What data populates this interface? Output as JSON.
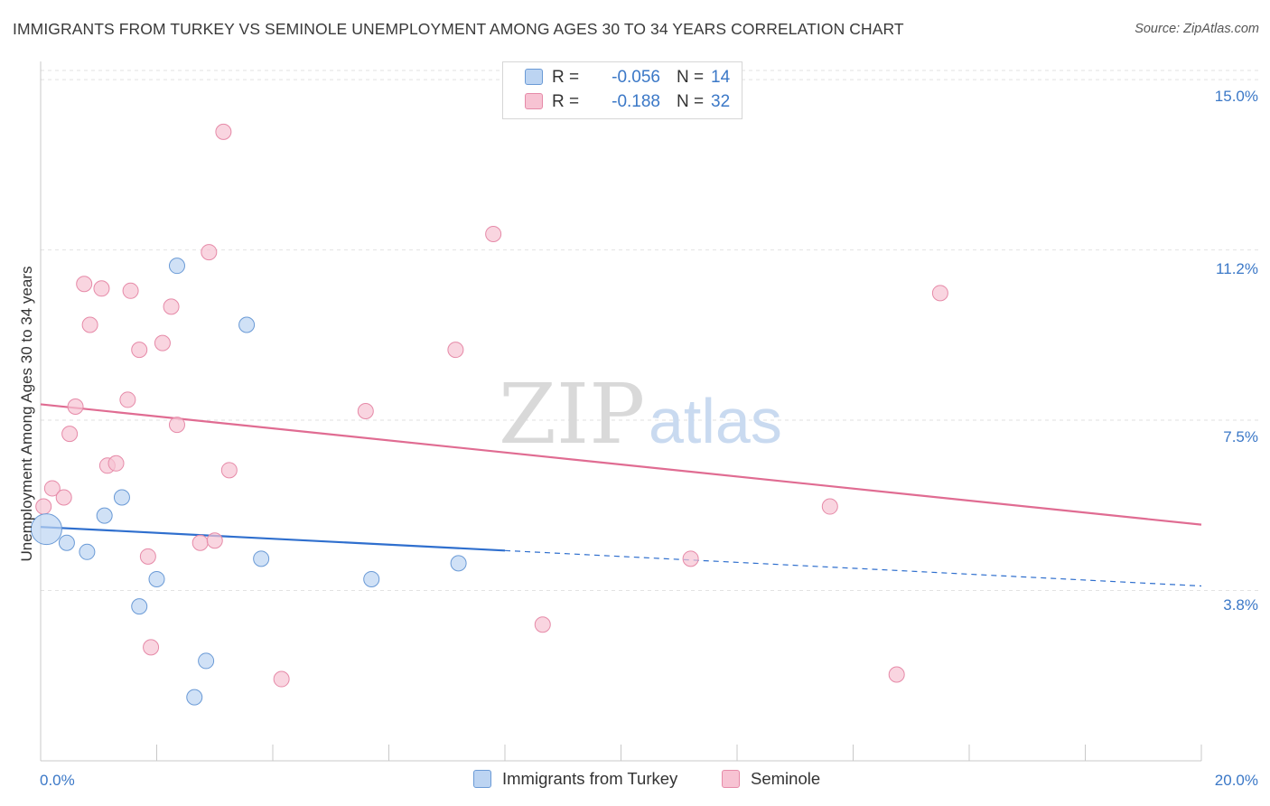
{
  "title": "IMMIGRANTS FROM TURKEY VS SEMINOLE UNEMPLOYMENT AMONG AGES 30 TO 34 YEARS CORRELATION CHART",
  "source": "Source: ZipAtlas.com",
  "watermark": {
    "zip": "ZIP",
    "atlas": "atlas"
  },
  "colors": {
    "blue_fill": "#bcd4f2",
    "blue_stroke": "#6a9ad6",
    "blue_line": "#2f6fce",
    "pink_fill": "#f7c3d3",
    "pink_stroke": "#e68aa8",
    "pink_line": "#e06c92",
    "accent_text": "#3b78c7",
    "grid": "#e2e2e2"
  },
  "legend": {
    "rows": [
      {
        "series": "blue",
        "r_label": "R =",
        "r_value": "-0.056",
        "n_label": "N =",
        "n_value": "14"
      },
      {
        "series": "pink",
        "r_label": "R =",
        "r_value": "-0.188",
        "n_label": "N =",
        "n_value": "32"
      }
    ]
  },
  "bottom_legend": [
    {
      "series": "blue",
      "label": "Immigrants from Turkey"
    },
    {
      "series": "pink",
      "label": "Seminole"
    }
  ],
  "chart_data": {
    "type": "scatter",
    "title": "IMMIGRANTS FROM TURKEY VS SEMINOLE UNEMPLOYMENT AMONG AGES 30 TO 34 YEARS CORRELATION CHART",
    "xlabel": "",
    "ylabel": "Unemployment Among Ages 30 to 34 years",
    "xlim": [
      0,
      20
    ],
    "ylim": [
      0,
      15.4
    ],
    "x_tick_labels": [
      {
        "value": 0,
        "label": "0.0%"
      },
      {
        "value": 20,
        "label": "20.0%"
      }
    ],
    "y_tick_labels": [
      {
        "value": 15.0,
        "label": "15.0%"
      },
      {
        "value": 11.2,
        "label": "11.2%"
      },
      {
        "value": 7.5,
        "label": "7.5%"
      },
      {
        "value": 3.8,
        "label": "3.8%"
      }
    ],
    "y_gridlines": [
      15.0,
      11.25,
      7.5,
      3.75
    ],
    "series": [
      {
        "name": "Immigrants from Turkey",
        "color": "blue",
        "points": [
          {
            "x": 0.1,
            "y": 5.1,
            "size": "large"
          },
          {
            "x": 0.45,
            "y": 4.8
          },
          {
            "x": 0.8,
            "y": 4.6
          },
          {
            "x": 1.1,
            "y": 5.4
          },
          {
            "x": 1.4,
            "y": 5.8
          },
          {
            "x": 1.7,
            "y": 3.4
          },
          {
            "x": 2.0,
            "y": 4.0
          },
          {
            "x": 2.35,
            "y": 10.9
          },
          {
            "x": 2.85,
            "y": 2.2
          },
          {
            "x": 2.65,
            "y": 1.4
          },
          {
            "x": 3.55,
            "y": 9.6
          },
          {
            "x": 3.8,
            "y": 4.45
          },
          {
            "x": 5.7,
            "y": 4.0
          },
          {
            "x": 7.2,
            "y": 4.35
          }
        ],
        "trend": {
          "x0": 0,
          "y0": 5.15,
          "x_solid_end": 8.0,
          "x1": 20,
          "y1": 3.85
        }
      },
      {
        "name": "Seminole",
        "color": "pink",
        "points": [
          {
            "x": 0.05,
            "y": 5.6
          },
          {
            "x": 0.2,
            "y": 6.0
          },
          {
            "x": 0.4,
            "y": 5.8
          },
          {
            "x": 0.5,
            "y": 7.2
          },
          {
            "x": 0.6,
            "y": 7.8
          },
          {
            "x": 0.75,
            "y": 10.5
          },
          {
            "x": 0.85,
            "y": 9.6
          },
          {
            "x": 1.05,
            "y": 10.4
          },
          {
            "x": 1.15,
            "y": 6.5
          },
          {
            "x": 1.3,
            "y": 6.55
          },
          {
            "x": 1.5,
            "y": 7.95
          },
          {
            "x": 1.55,
            "y": 10.35
          },
          {
            "x": 1.7,
            "y": 9.05
          },
          {
            "x": 1.85,
            "y": 4.5
          },
          {
            "x": 1.9,
            "y": 2.5
          },
          {
            "x": 2.1,
            "y": 9.2
          },
          {
            "x": 2.25,
            "y": 10.0
          },
          {
            "x": 2.35,
            "y": 7.4
          },
          {
            "x": 2.75,
            "y": 4.8
          },
          {
            "x": 2.9,
            "y": 11.2
          },
          {
            "x": 3.0,
            "y": 4.85
          },
          {
            "x": 3.15,
            "y": 13.85
          },
          {
            "x": 3.25,
            "y": 6.4
          },
          {
            "x": 4.15,
            "y": 1.8
          },
          {
            "x": 5.6,
            "y": 7.7
          },
          {
            "x": 7.15,
            "y": 9.05
          },
          {
            "x": 7.8,
            "y": 11.6
          },
          {
            "x": 8.65,
            "y": 3.0
          },
          {
            "x": 11.2,
            "y": 4.45
          },
          {
            "x": 13.6,
            "y": 5.6
          },
          {
            "x": 15.5,
            "y": 10.3
          },
          {
            "x": 14.75,
            "y": 1.9
          }
        ],
        "trend": {
          "x0": 0,
          "y0": 7.85,
          "x1": 20,
          "y1": 5.2
        }
      }
    ]
  }
}
